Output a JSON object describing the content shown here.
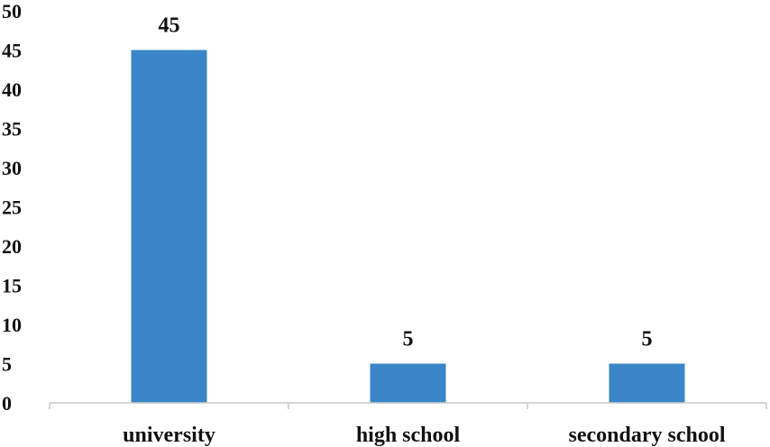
{
  "chart_data": {
    "type": "bar",
    "title": "",
    "xlabel": "",
    "ylabel": "",
    "categories": [
      "university",
      "high school",
      "secondary school"
    ],
    "values": [
      45,
      5,
      5
    ],
    "data_labels": [
      "45",
      "5",
      "5"
    ],
    "ylim": [
      0,
      50
    ],
    "yticks": [
      0,
      5,
      10,
      15,
      20,
      25,
      30,
      35,
      40,
      45,
      50
    ],
    "ytick_labels": [
      "0",
      "5",
      "10",
      "15",
      "20",
      "25",
      "30",
      "35",
      "40",
      "45",
      "50"
    ],
    "grid": false,
    "legend": "none",
    "bar_color": "#3a86c8",
    "axis_color": "#c8c8c8"
  }
}
